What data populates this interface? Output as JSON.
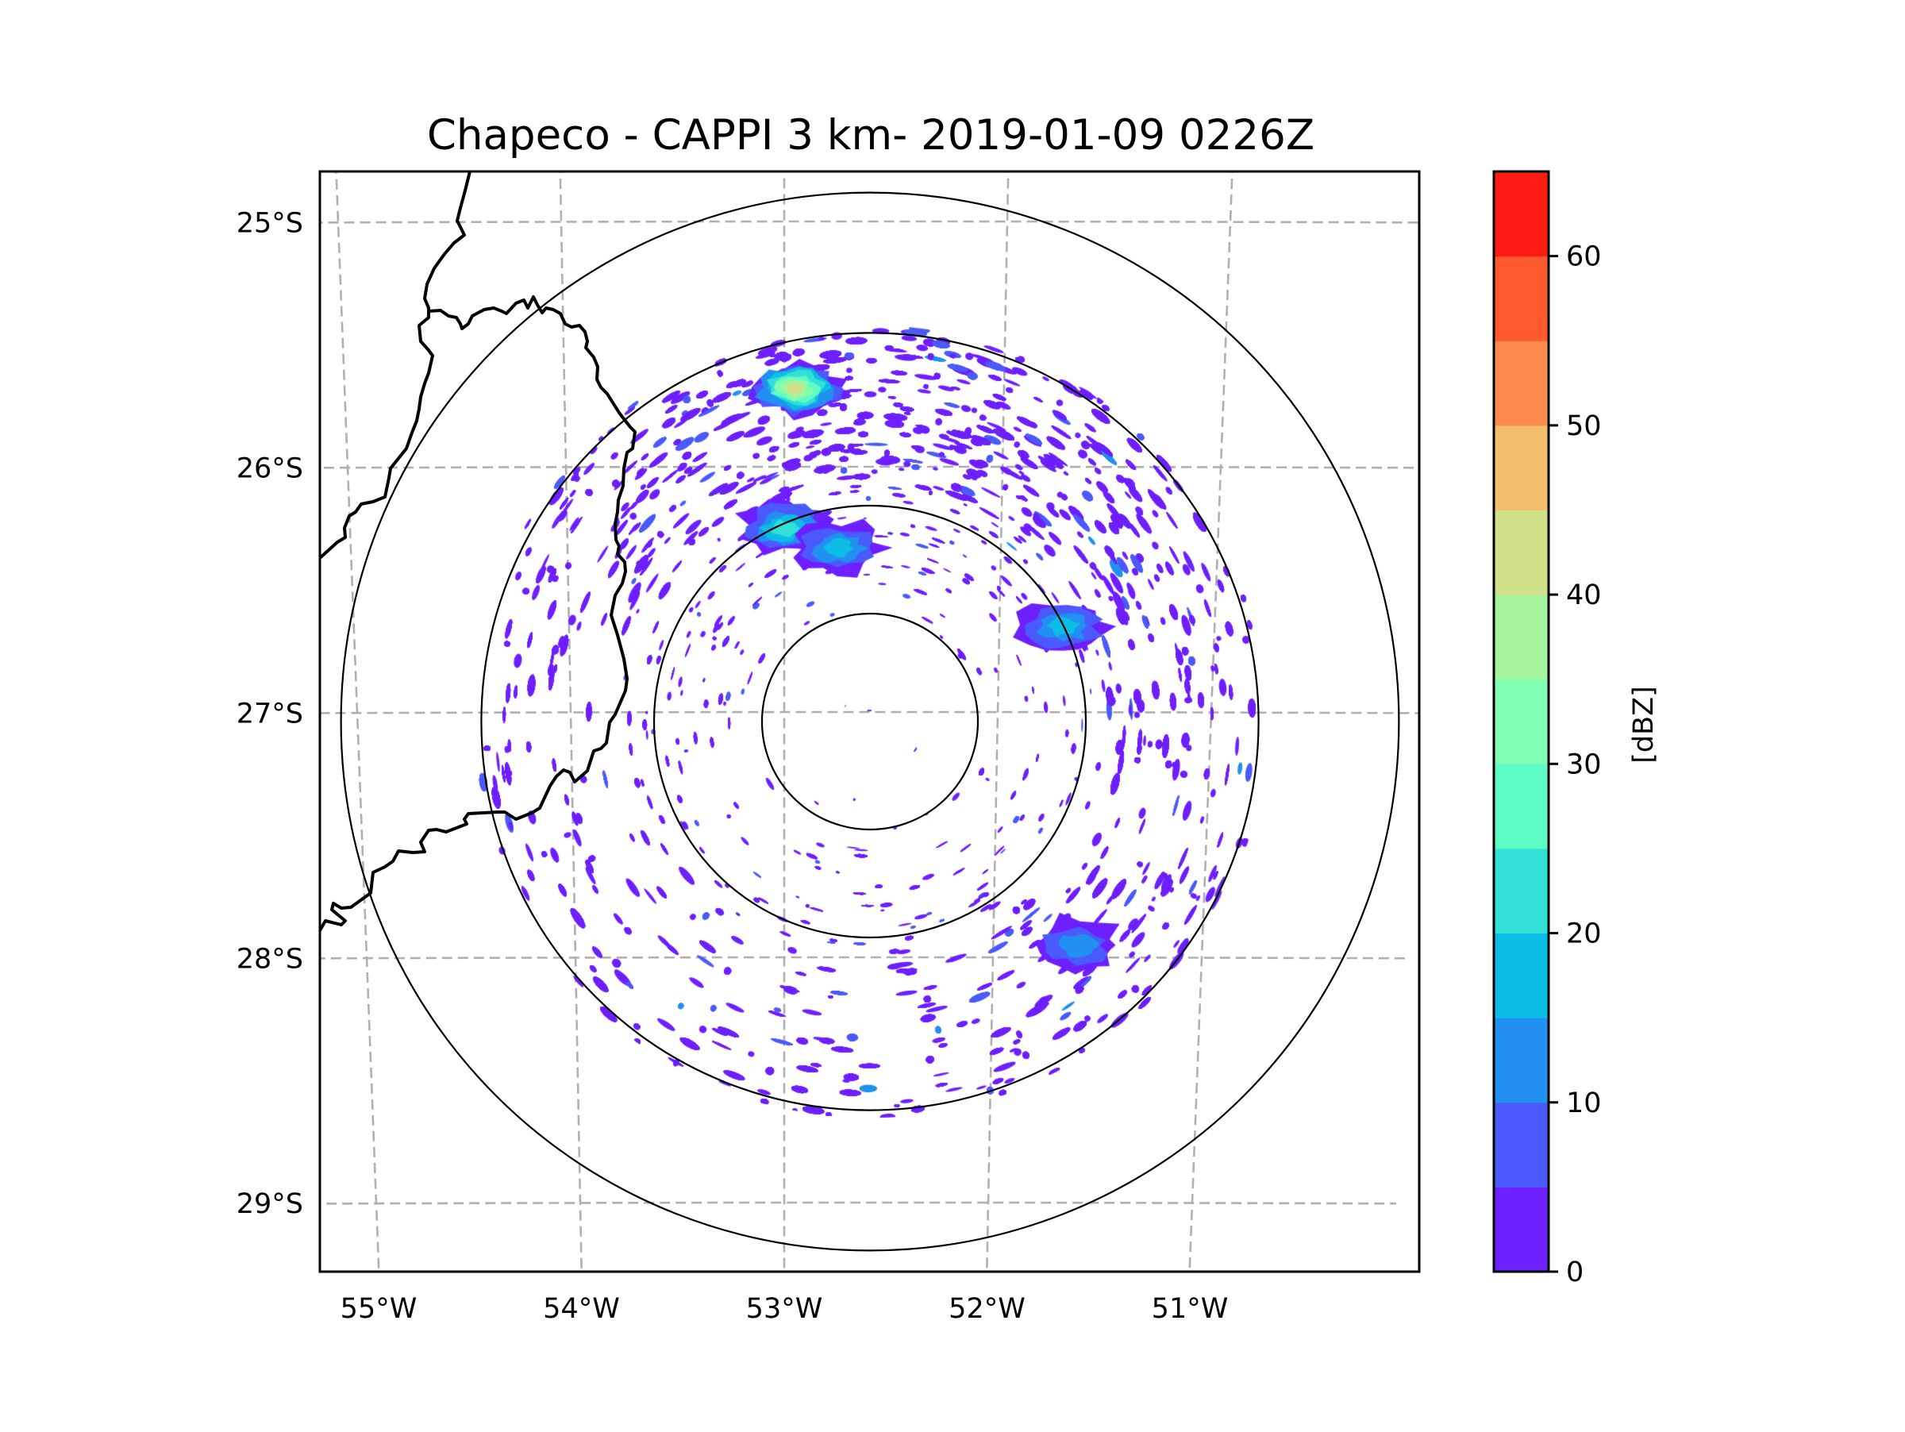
{
  "chart_data": {
    "type": "heatmap",
    "subtype": "radar-ppi-map",
    "title": "Chapeco - CAPPI 3 km- 2019-01-09 0226Z",
    "radar_site": "Chapeco",
    "product": "CAPPI 3 km",
    "datetime": "2019-01-09 0226Z",
    "xlabel": "",
    "ylabel": "",
    "x_ticks": [
      {
        "value": -55,
        "label": "55°W"
      },
      {
        "value": -54,
        "label": "54°W"
      },
      {
        "value": -53,
        "label": "53°W"
      },
      {
        "value": -52,
        "label": "52°W"
      },
      {
        "value": -51,
        "label": "51°W"
      }
    ],
    "y_ticks": [
      {
        "value": -25,
        "label": "25°S"
      },
      {
        "value": -26,
        "label": "26°S"
      },
      {
        "value": -27,
        "label": "27°S"
      },
      {
        "value": -28,
        "label": "28°S"
      },
      {
        "value": -29,
        "label": "29°S"
      }
    ],
    "xlim": [
      -55.2,
      -50.1
    ],
    "ylim": [
      -29.25,
      -24.8
    ],
    "grid": true,
    "radar_center": {
      "lon": -52.6,
      "lat": -27.03
    },
    "range_rings_km": [
      50,
      100,
      180,
      245
    ],
    "data_range_km": 180,
    "colorbar": {
      "label": "[dBZ]",
      "vmin": 0,
      "vmax": 65,
      "step": 5,
      "ticks": [
        0,
        10,
        20,
        30,
        40,
        50,
        60
      ],
      "tick_labels": [
        "0",
        "10",
        "20",
        "30",
        "40",
        "50",
        "60"
      ],
      "placement": "right",
      "colors": [
        "#6d1fff",
        "#4a5afc",
        "#2190f0",
        "#0cbde6",
        "#33e0d8",
        "#5cfcc4",
        "#80feb2",
        "#a4f59c",
        "#cfe088",
        "#f3bf6c",
        "#ff8c4c",
        "#ff5a2e",
        "#ff1c12"
      ]
    },
    "echo_field": {
      "description": "Widespread weak echoes (mostly 0-10 dBZ) filling the 180 km range circle; denser in the northern, north-eastern and south-eastern sectors, sparse speckle near the radar.",
      "max_dbz_observed": 42,
      "notable_echoes": [
        {
          "lon": -53.0,
          "lat": -26.25,
          "max_dbz": 20,
          "label": "cell north-west of radar"
        },
        {
          "lon": -52.75,
          "lat": -26.33,
          "max_dbz": 18,
          "label": "small cell"
        },
        {
          "lon": -52.95,
          "lat": -25.68,
          "max_dbz": 42,
          "label": "northern band core"
        },
        {
          "lon": -51.7,
          "lat": -26.65,
          "max_dbz": 15,
          "label": "north-east cluster"
        },
        {
          "lon": -51.6,
          "lat": -27.95,
          "max_dbz": 12,
          "label": "south-east cluster"
        }
      ],
      "sector_density": [
        {
          "sector": "N",
          "coverage": 0.65
        },
        {
          "sector": "NE",
          "coverage": 0.6
        },
        {
          "sector": "E",
          "coverage": 0.35
        },
        {
          "sector": "SE",
          "coverage": 0.45
        },
        {
          "sector": "S",
          "coverage": 0.35
        },
        {
          "sector": "SW",
          "coverage": 0.25
        },
        {
          "sector": "W",
          "coverage": 0.3
        },
        {
          "sector": "NW",
          "coverage": 0.5
        },
        {
          "sector": "inner-50km",
          "coverage": 0.04
        }
      ]
    },
    "boundaries": [
      "Brazil–Argentina border",
      "Paraná–Santa Catarina / Misiones outline"
    ]
  }
}
